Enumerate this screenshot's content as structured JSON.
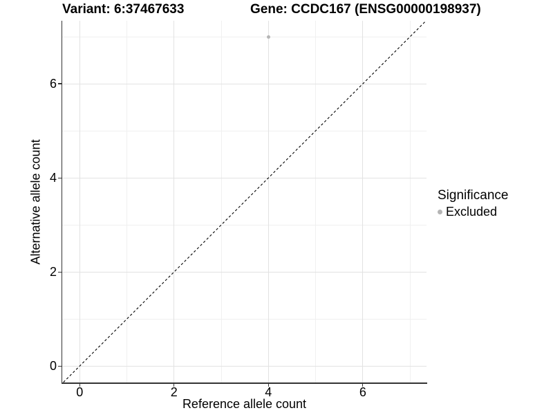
{
  "chart_data": {
    "type": "scatter",
    "titles": {
      "left": "Variant: 6:37467633",
      "right": "Gene: CCDC167 (ENSG00000198937)"
    },
    "xlabel": "Reference allele count",
    "ylabel": "Alternative allele count",
    "xlim": [
      -0.37,
      7.35
    ],
    "ylim": [
      -0.35,
      7.34
    ],
    "x_ticks": {
      "major": [
        0,
        2,
        4,
        6
      ],
      "minor": [
        1,
        3,
        5,
        7
      ]
    },
    "y_ticks": {
      "major": [
        0,
        2,
        4,
        6
      ],
      "minor": [
        1,
        3,
        5,
        7
      ]
    },
    "grid": {
      "on": true,
      "major_color": "#e2e2e2",
      "minor_color": "#f0f0f0"
    },
    "reference_line": {
      "type": "identity",
      "style": "dashed",
      "color": "#000000",
      "from": [
        -0.345,
        -0.345
      ],
      "to": [
        7.34,
        7.34
      ]
    },
    "series": [
      {
        "name": "Excluded",
        "color": "#b5b5b5",
        "points": [
          [
            4,
            7
          ]
        ]
      }
    ],
    "legend": {
      "title": "Significance",
      "position": "right",
      "items": [
        {
          "label": "Excluded",
          "color": "#b5b5b5"
        }
      ]
    },
    "axis_color": "#333333"
  }
}
